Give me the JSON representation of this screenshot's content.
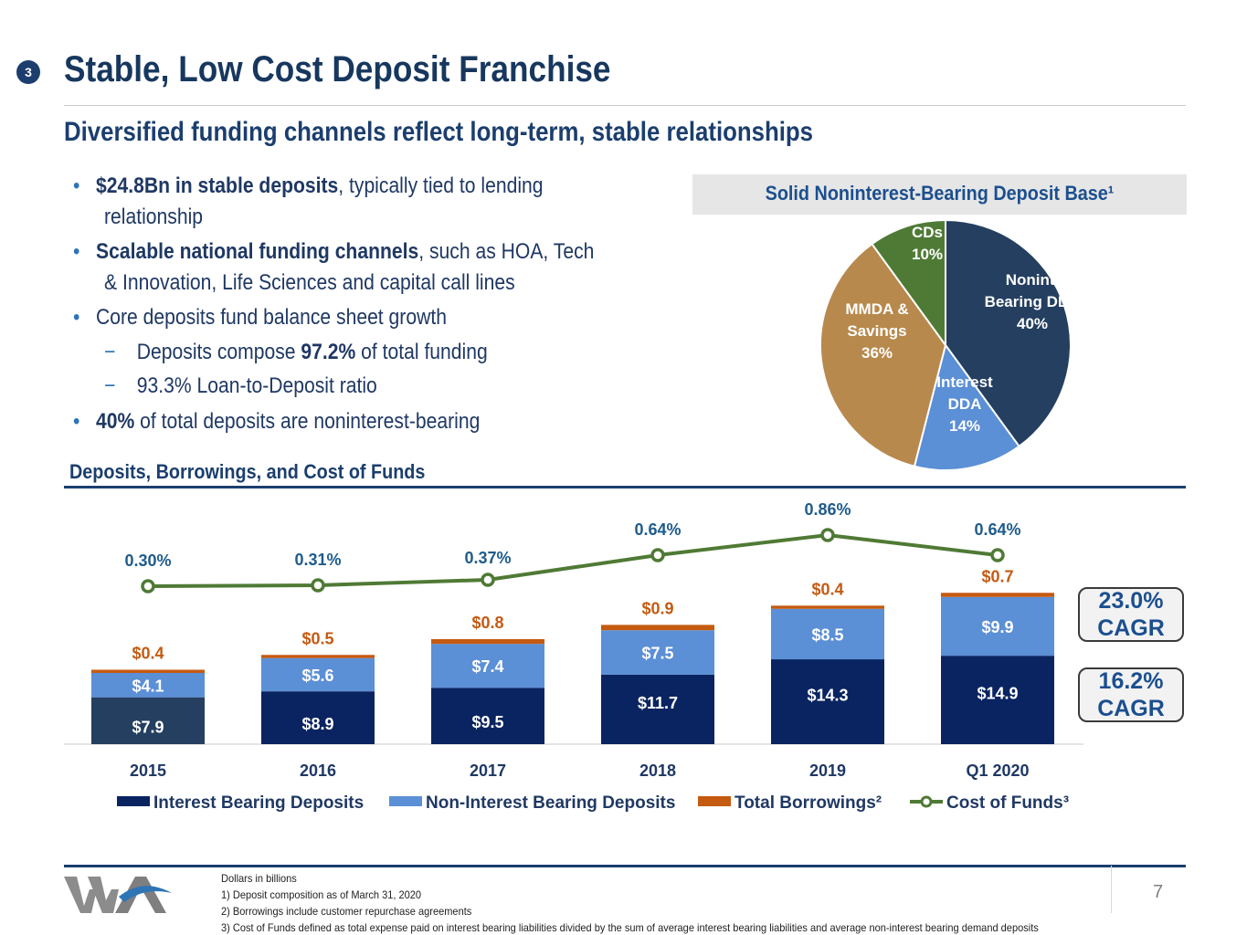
{
  "header": {
    "section_number": "3",
    "title": "Stable, Low Cost Deposit Franchise",
    "subtitle": "Diversified funding channels reflect long-term, stable relationships"
  },
  "bullets": [
    {
      "bold": "$24.8Bn in stable deposits",
      "text": ", typically tied to lending"
    },
    {
      "bold": "",
      "text": "relationship"
    },
    {
      "bold": "Scalable national funding channels",
      "text": ", such as HOA, Tech"
    },
    {
      "bold": "",
      "text": "& Innovation, Life Sciences and capital call lines"
    },
    {
      "bold": "",
      "text": "Core deposits fund balance sheet growth"
    },
    {
      "pre": "Deposits compose ",
      "bold": "97.2%",
      "text": " of total funding"
    },
    {
      "bold": "",
      "text": "93.3% Loan-to-Deposit ratio"
    },
    {
      "bold": "40%",
      "text": " of total deposits are noninterest-bearing"
    }
  ],
  "pie": {
    "title": "Solid Noninterest-Bearing Deposit Base¹",
    "slices": [
      {
        "label_lines": [
          "Nonint.",
          "Bearing DDA",
          "40%"
        ],
        "value": 40,
        "color": "#243f60"
      },
      {
        "label_lines": [
          "Interest",
          "DDA",
          "14%"
        ],
        "value": 14,
        "color": "#5b8fd6"
      },
      {
        "label_lines": [
          "MMDA &",
          "Savings",
          "36%"
        ],
        "value": 36,
        "color": "#b8894d"
      },
      {
        "label_lines": [
          "CDs",
          "10%"
        ],
        "value": 10,
        "color": "#4f7a35"
      }
    ]
  },
  "chart_heading": "Deposits, Borrowings, and Cost of Funds",
  "chart_data": {
    "type": "bar",
    "stacked": true,
    "categories": [
      "2015",
      "2016",
      "2017",
      "2018",
      "2019",
      "Q1 2020"
    ],
    "series": [
      {
        "name": "Interest Bearing Deposits",
        "values": [
          7.9,
          8.9,
          9.5,
          11.7,
          14.3,
          14.9
        ],
        "labels": [
          "$7.9",
          "$8.9",
          "$9.5",
          "$11.7",
          "$14.3",
          "$14.9"
        ],
        "color": "#0a2461"
      },
      {
        "name": "Non-Interest Bearing Deposits",
        "values": [
          4.1,
          5.6,
          7.4,
          7.5,
          8.5,
          9.9
        ],
        "labels": [
          "$4.1",
          "$5.6",
          "$7.4",
          "$7.5",
          "$8.5",
          "$9.9"
        ],
        "color": "#5b8fd6"
      },
      {
        "name": "Total Borrowings²",
        "values": [
          0.4,
          0.5,
          0.8,
          0.9,
          0.4,
          0.7
        ],
        "labels": [
          "$0.4",
          "$0.5",
          "$0.8",
          "$0.9",
          "$0.4",
          "$0.7"
        ],
        "color": "#c55a11"
      }
    ],
    "line_series": {
      "name": "Cost of Funds³",
      "values": [
        0.3,
        0.31,
        0.37,
        0.64,
        0.86,
        0.64
      ],
      "labels": [
        "0.30%",
        "0.31%",
        "0.37%",
        "0.64%",
        "0.86%",
        "0.64%"
      ],
      "color": "#4f7a35"
    },
    "cagr": [
      {
        "value": "23.0%",
        "label": "CAGR"
      },
      {
        "value": "16.2%",
        "label": "CAGR"
      }
    ],
    "legend_position": "bottom"
  },
  "footer": {
    "notes": [
      "Dollars in billions",
      "1) Deposit composition as of March 31, 2020",
      "2) Borrowings include customer repurchase agreements",
      "3) Cost of Funds defined as total expense paid on interest bearing liabilities divided by the sum of average interest bearing liabilities and average non-interest bearing demand deposits"
    ],
    "page_number": "7"
  }
}
